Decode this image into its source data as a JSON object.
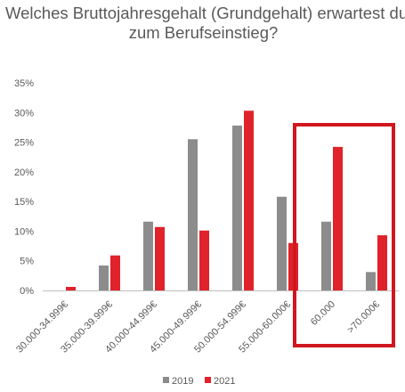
{
  "title_lines": [
    "Welches Bruttojahresgehalt (Grundgehalt) erwartest du",
    "zum Berufseinstieg?"
  ],
  "colors": {
    "series_2019": "#8c8c8c",
    "series_2021": "#e0222a",
    "highlight_box": "#d0171f",
    "axis": "#bfbfbf",
    "text": "#595959"
  },
  "chart_data": {
    "type": "bar",
    "categories": [
      "30.000-34.999€",
      "35.000-39.999€",
      "40.000-44.999€",
      "45.000-49.999€",
      "50.000-54.999€",
      "55.000-60.000€",
      "60.000",
      ">70.000€"
    ],
    "series": [
      {
        "name": "2019",
        "values": [
          0.0,
          4.2,
          11.6,
          25.5,
          27.8,
          15.8,
          11.6,
          3.1
        ]
      },
      {
        "name": "2021",
        "values": [
          0.6,
          5.9,
          10.7,
          10.1,
          30.3,
          8.0,
          24.2,
          9.3
        ]
      }
    ],
    "yticks": [
      "0%",
      "5%",
      "10%",
      "15%",
      "20%",
      "25%",
      "30%",
      "35%"
    ],
    "ylim": [
      0,
      35
    ],
    "grid": false,
    "legend_position": "bottom",
    "highlight_categories": [
      "60.000",
      ">70.000€"
    ]
  }
}
